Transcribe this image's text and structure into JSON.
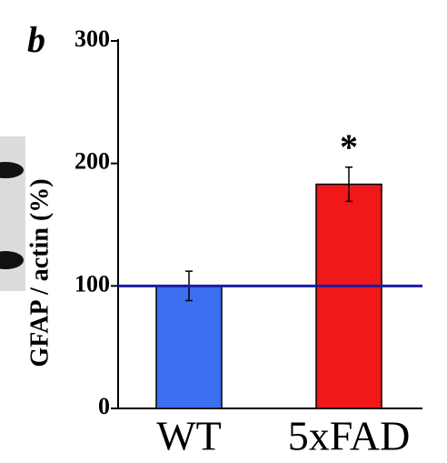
{
  "chart_data": {
    "type": "bar",
    "panel_label": "b",
    "y_label": "GFAP / actin (%)",
    "categories": [
      "WT",
      "5xFAD"
    ],
    "values": [
      100,
      183
    ],
    "errors": [
      12,
      14
    ],
    "colors": [
      "#3c6ef2",
      "#f01818"
    ],
    "annotations": [
      "",
      "*"
    ],
    "reference_line": 100,
    "reference_color": "#1c1ca8",
    "ylim": [
      0,
      300
    ],
    "yticks": [
      0,
      100,
      200,
      300
    ]
  }
}
